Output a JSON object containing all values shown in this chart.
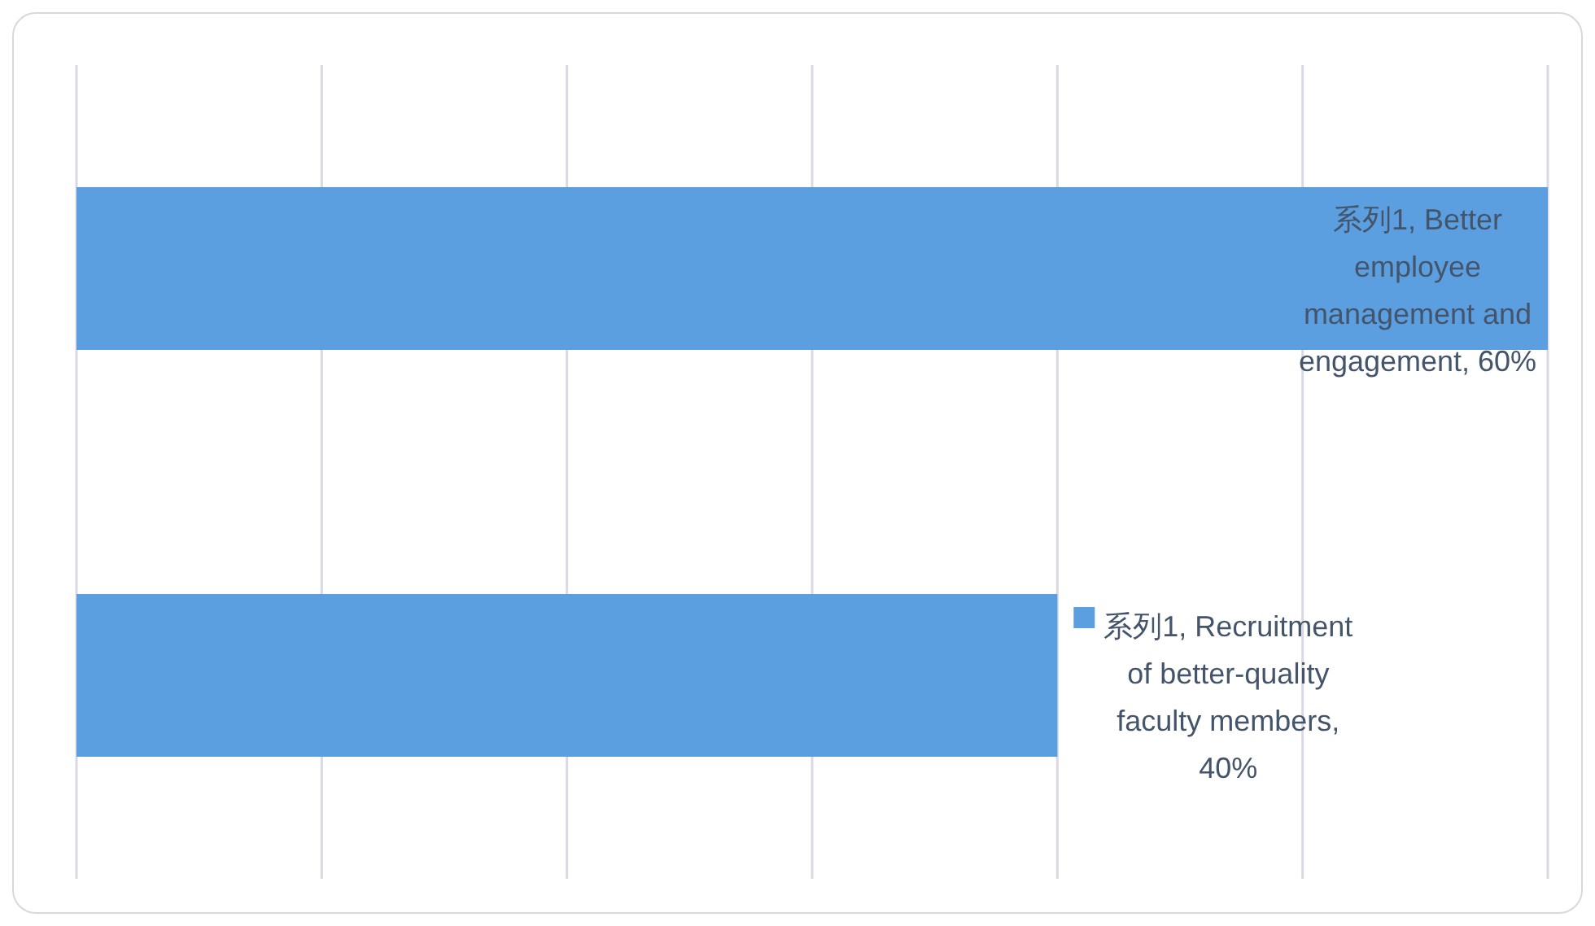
{
  "chart_data": {
    "type": "bar",
    "orientation": "horizontal",
    "categories": [
      null,
      null
    ],
    "series": [
      {
        "color": "#5b9fe0",
        "values": [
          60,
          40
        ],
        "value_labels": [
          "系列1, Better employee management and engagement, 60%",
          "系列1, Recruitment of better-quality faculty members, 40%"
        ]
      }
    ],
    "xlim": [
      0,
      60
    ],
    "xticks": [
      {
        "value": 0,
        "label": null
      },
      {
        "value": 10,
        "label": null
      },
      {
        "value": 20,
        "label": null
      },
      {
        "value": 30,
        "label": null
      },
      {
        "value": 40,
        "label": null
      },
      {
        "value": 50,
        "label": null
      },
      {
        "value": 60,
        "label": null
      }
    ],
    "grid": "x"
  }
}
